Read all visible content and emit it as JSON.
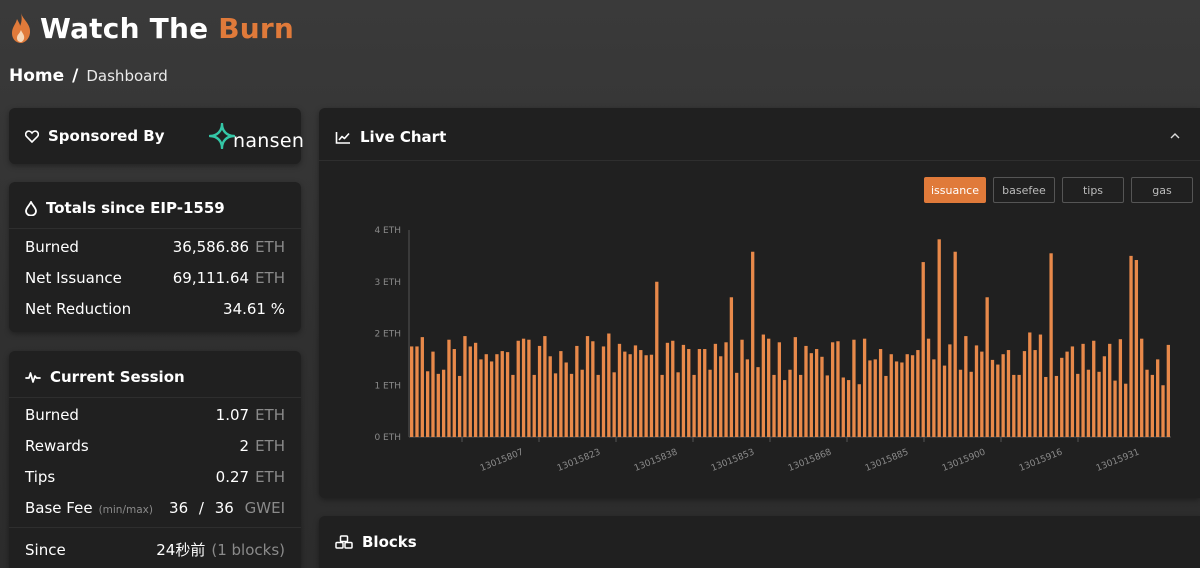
{
  "brand": {
    "title_main": "Watch The",
    "title_accent": "Burn",
    "accent_color": "#e07a3a",
    "icon": "flame-icon"
  },
  "breadcrumb": {
    "home": "Home",
    "separator": "/",
    "current": "Dashboard"
  },
  "sponsor": {
    "title": "Sponsored By",
    "icon": "heart-icon",
    "logo_text": "nansen"
  },
  "totals": {
    "title": "Totals since EIP-1559",
    "icon": "drop-icon",
    "rows": [
      {
        "label": "Burned",
        "value": "36,586.86",
        "unit": "ETH"
      },
      {
        "label": "Net Issuance",
        "value": "69,111.64",
        "unit": "ETH"
      },
      {
        "label": "Net Reduction",
        "value": "34.61 %",
        "unit": ""
      }
    ]
  },
  "session": {
    "title": "Current Session",
    "icon": "pulse-icon",
    "rows": [
      {
        "label": "Burned",
        "value": "1.07",
        "unit": "ETH"
      },
      {
        "label": "Rewards",
        "value": "2",
        "unit": "ETH"
      },
      {
        "label": "Tips",
        "value": "0.27",
        "unit": "ETH"
      }
    ],
    "base_fee": {
      "label": "Base Fee",
      "hint": "(min/max)",
      "min": "36",
      "slash": "/",
      "max": "36",
      "unit": "GWEI"
    },
    "since": {
      "label": "Since",
      "value": "24秒前",
      "extra": "(1 blocks)"
    }
  },
  "live_chart": {
    "title": "Live Chart",
    "icon": "chart-line-icon",
    "collapse_icon": "chevron-up-icon",
    "tabs": [
      "issuance",
      "basefee",
      "tips",
      "gas"
    ],
    "active_tab": "issuance"
  },
  "blocks_panel": {
    "title": "Blocks",
    "icon": "cubes-icon"
  },
  "chart_data": {
    "type": "bar",
    "bar_color": "#e8894a",
    "ylim": [
      0,
      4
    ],
    "y_ticks": [
      0,
      1,
      2,
      3,
      4
    ],
    "y_tick_labels": [
      "0 ETH",
      "1 ETH",
      "2 ETH",
      "3 ETH",
      "4 ETH"
    ],
    "x_tick_labels": [
      "13015807",
      "13015823",
      "13015838",
      "13015853",
      "13015868",
      "13015885",
      "13015900",
      "13015916",
      "13015931"
    ],
    "values": [
      1.75,
      1.75,
      1.93,
      1.27,
      1.65,
      1.22,
      1.3,
      1.88,
      1.7,
      1.18,
      1.95,
      1.75,
      1.82,
      1.5,
      1.6,
      1.46,
      1.6,
      1.66,
      1.64,
      1.2,
      1.86,
      1.9,
      1.88,
      1.2,
      1.76,
      1.95,
      1.56,
      1.23,
      1.66,
      1.44,
      1.22,
      1.76,
      1.3,
      1.95,
      1.85,
      1.2,
      1.75,
      2.0,
      1.25,
      1.8,
      1.65,
      1.6,
      1.77,
      1.68,
      1.58,
      1.59,
      3.0,
      1.2,
      1.82,
      1.86,
      1.25,
      1.78,
      1.7,
      1.2,
      1.7,
      1.7,
      1.3,
      1.8,
      1.56,
      1.83,
      2.7,
      1.24,
      1.88,
      1.5,
      3.58,
      1.35,
      1.98,
      1.9,
      1.2,
      1.83,
      1.1,
      1.3,
      1.93,
      1.2,
      1.76,
      1.62,
      1.7,
      1.55,
      1.19,
      1.83,
      1.85,
      1.15,
      1.1,
      1.88,
      1.02,
      1.9,
      1.48,
      1.5,
      1.7,
      1.18,
      1.6,
      1.46,
      1.44,
      1.6,
      1.58,
      1.68,
      3.38,
      1.9,
      1.5,
      3.82,
      1.38,
      1.79,
      3.58,
      1.3,
      1.95,
      1.26,
      1.77,
      1.65,
      2.7,
      1.49,
      1.4,
      1.6,
      1.68,
      1.2,
      1.2,
      1.66,
      2.02,
      1.68,
      1.98,
      1.16,
      3.55,
      1.18,
      1.53,
      1.65,
      1.75,
      1.22,
      1.8,
      1.3,
      1.86,
      1.26,
      1.56,
      1.8,
      1.09,
      1.89,
      1.03,
      3.5,
      3.42,
      1.9,
      1.3,
      1.2,
      1.5,
      1.0,
      1.78
    ]
  }
}
